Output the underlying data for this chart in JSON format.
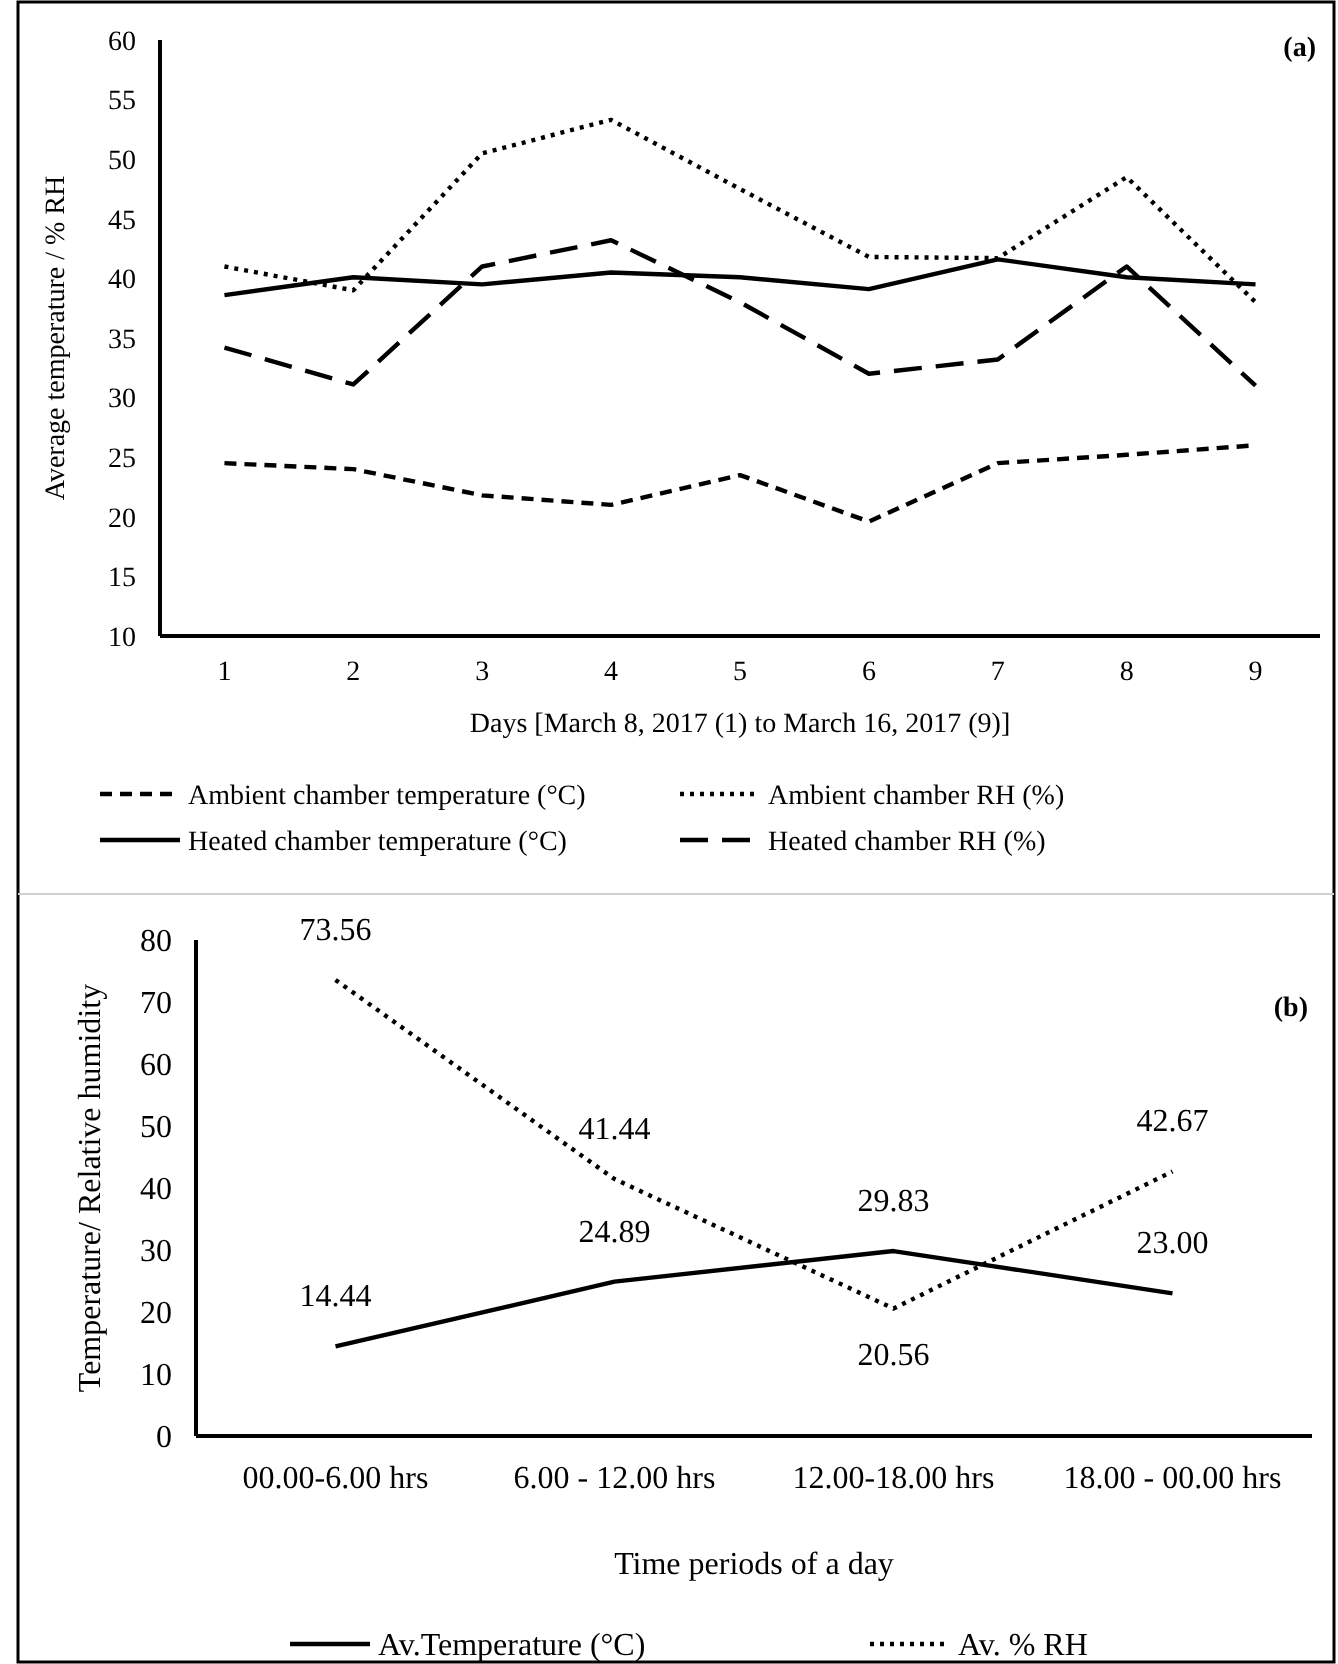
{
  "chart_data": [
    {
      "type": "line",
      "ylabel": "Average  temperature / % RH",
      "xlabel": "Days [March 8, 2017 (1) to March 16, 2017 (9)]",
      "annotations": [
        "(a)"
      ],
      "categories": [
        "1",
        "2",
        "3",
        "4",
        "5",
        "6",
        "7",
        "8",
        "9"
      ],
      "ylim": [
        10,
        60
      ],
      "yticks": [
        10,
        15,
        20,
        25,
        30,
        35,
        40,
        45,
        50,
        55,
        60
      ],
      "legend": "bottom",
      "grid": false,
      "series": [
        {
          "name": "Ambient chamber temperature (°C)",
          "color": "#000000",
          "line_style": "dashed",
          "values": [
            24.5,
            24,
            21.8,
            21,
            23.5,
            19.6,
            24.5,
            25.2,
            26
          ]
        },
        {
          "name": "Ambient chamber RH (%)",
          "color": "#000000",
          "line_style": "dotted",
          "values": [
            41,
            39,
            50.5,
            53.3,
            47.5,
            41.8,
            41.7,
            48.5,
            38
          ]
        },
        {
          "name": "Heated chamber temperature (°C)",
          "color": "#000000",
          "line_style": "solid",
          "values": [
            38.6,
            40.1,
            39.5,
            40.5,
            40.1,
            39.1,
            41.6,
            40.1,
            39.5
          ]
        },
        {
          "name": "Heated chamber RH (%)",
          "color": "#000000",
          "line_style": "longdash",
          "values": [
            34.2,
            31.1,
            41,
            43.2,
            38,
            32,
            33.2,
            41,
            31
          ]
        }
      ]
    },
    {
      "type": "line",
      "ylabel": "Temperature/ Relative  humidity",
      "xlabel": "Time periods  of a day",
      "annotations": [
        "(b)"
      ],
      "categories": [
        "00.00-6.00 hrs",
        "6.00 - 12.00 hrs",
        "12.00-18.00 hrs",
        "18.00 - 00.00 hrs"
      ],
      "ylim": [
        0,
        80
      ],
      "yticks": [
        0,
        10,
        20,
        30,
        40,
        50,
        60,
        70,
        80
      ],
      "legend": "bottom",
      "grid": false,
      "series": [
        {
          "name": "Av.Temperature (°C)",
          "color": "#000000",
          "line_style": "solid",
          "values": [
            14.44,
            24.89,
            29.83,
            23.0
          ],
          "value_labels": [
            "14.44",
            "24.89",
            "29.83",
            "23.00"
          ]
        },
        {
          "name": "Av. % RH",
          "color": "#000000",
          "line_style": "dotted",
          "values": [
            73.56,
            41.44,
            20.56,
            42.67
          ],
          "value_labels": [
            "73.56",
            "41.44",
            "20.56",
            "42.67"
          ]
        }
      ]
    }
  ]
}
